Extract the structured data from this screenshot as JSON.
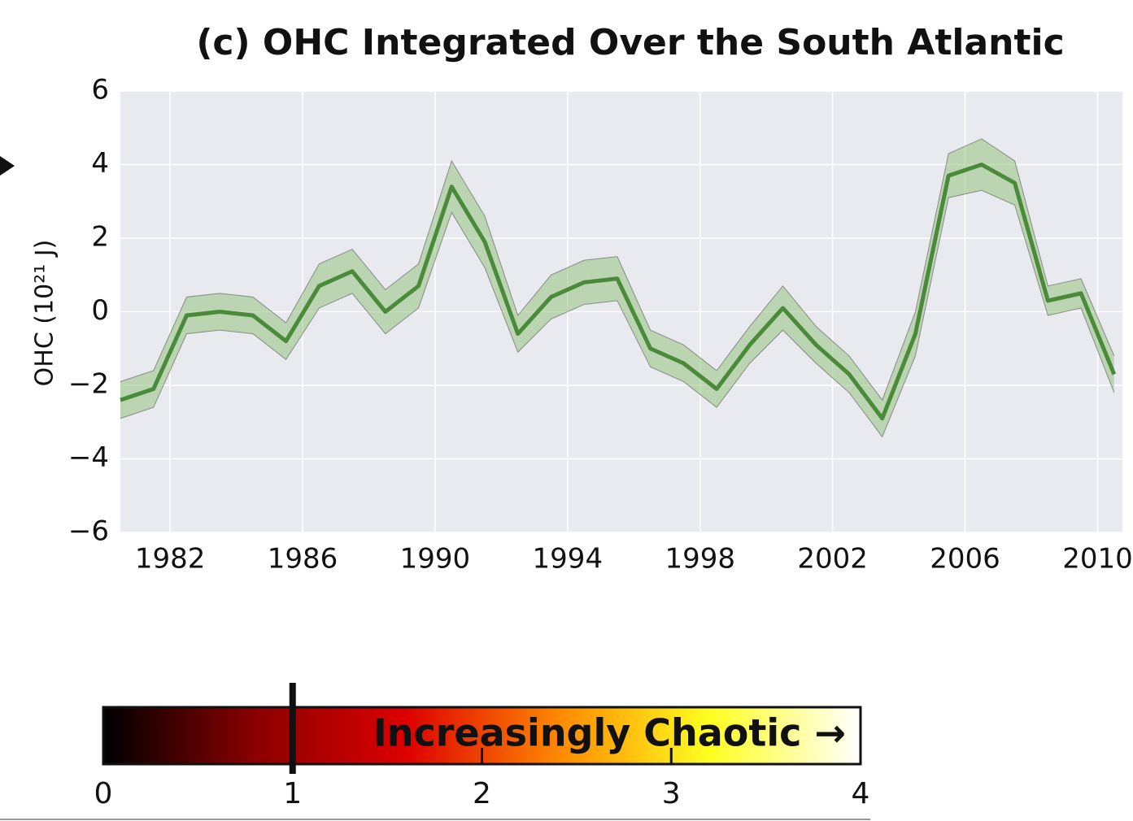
{
  "chart_data": [
    {
      "type": "line",
      "title": "(c) OHC Integrated Over the South Atlantic",
      "y_label": "OHC (10²¹ J)",
      "x": [
        1980.5,
        1981.5,
        1982.5,
        1983.5,
        1984.5,
        1985.5,
        1986.5,
        1987.5,
        1988.5,
        1989.5,
        1990.5,
        1991.5,
        1992.5,
        1993.5,
        1994.5,
        1995.5,
        1996.5,
        1997.5,
        1998.5,
        1999.5,
        2000.5,
        2001.5,
        2002.5,
        2003.5,
        2004.5,
        2005.5,
        2006.5,
        2007.5,
        2008.5,
        2009.5,
        2010.5
      ],
      "series": [
        {
          "color": "#4a8a3a",
          "values": [
            -2.4,
            -2.1,
            -0.1,
            0.0,
            -0.1,
            -0.8,
            0.7,
            1.1,
            0.0,
            0.7,
            3.4,
            1.9,
            -0.6,
            0.4,
            0.8,
            0.9,
            -1.0,
            -1.4,
            -2.1,
            -0.9,
            0.1,
            -0.9,
            -1.7,
            -2.9,
            -0.6,
            3.7,
            4.0,
            3.5,
            0.3,
            0.5,
            -1.7
          ],
          "lower": [
            -2.9,
            -2.6,
            -0.6,
            -0.5,
            -0.6,
            -1.3,
            0.1,
            0.5,
            -0.6,
            0.1,
            2.7,
            1.2,
            -1.1,
            -0.2,
            0.2,
            0.3,
            -1.5,
            -1.9,
            -2.6,
            -1.4,
            -0.5,
            -1.4,
            -2.2,
            -3.4,
            -1.2,
            3.1,
            3.3,
            2.9,
            -0.1,
            0.1,
            -2.2
          ],
          "upper": [
            -1.9,
            -1.6,
            0.4,
            0.5,
            0.4,
            -0.3,
            1.3,
            1.7,
            0.6,
            1.3,
            4.1,
            2.6,
            -0.1,
            1.0,
            1.4,
            1.5,
            -0.5,
            -0.9,
            -1.6,
            -0.4,
            0.7,
            -0.4,
            -1.2,
            -2.4,
            0.0,
            4.3,
            4.7,
            4.1,
            0.7,
            0.9,
            -1.2
          ],
          "band_color": "#9cc88a"
        }
      ],
      "xlim": [
        1980.5,
        2010.75
      ],
      "xticks": [
        1982,
        1986,
        1990,
        1994,
        1998,
        2002,
        2006,
        2010
      ],
      "ylim": [
        -6,
        6
      ],
      "yticks": [
        {
          "value": -6,
          "label": "−6"
        },
        {
          "value": -4,
          "label": "−4"
        },
        {
          "value": -2,
          "label": "−2"
        },
        0,
        2,
        4,
        6
      ],
      "grid": true
    },
    {
      "type": "colorbar",
      "label": "Increasingly Chaotic →",
      "xlim": [
        0,
        4
      ],
      "xticks": [
        0,
        1,
        2,
        3,
        4
      ],
      "marker": 1,
      "colors": [
        "#000000",
        "#8a0000",
        "#dd0000",
        "#ff8800",
        "#ffff20",
        "#ffffff"
      ]
    }
  ]
}
